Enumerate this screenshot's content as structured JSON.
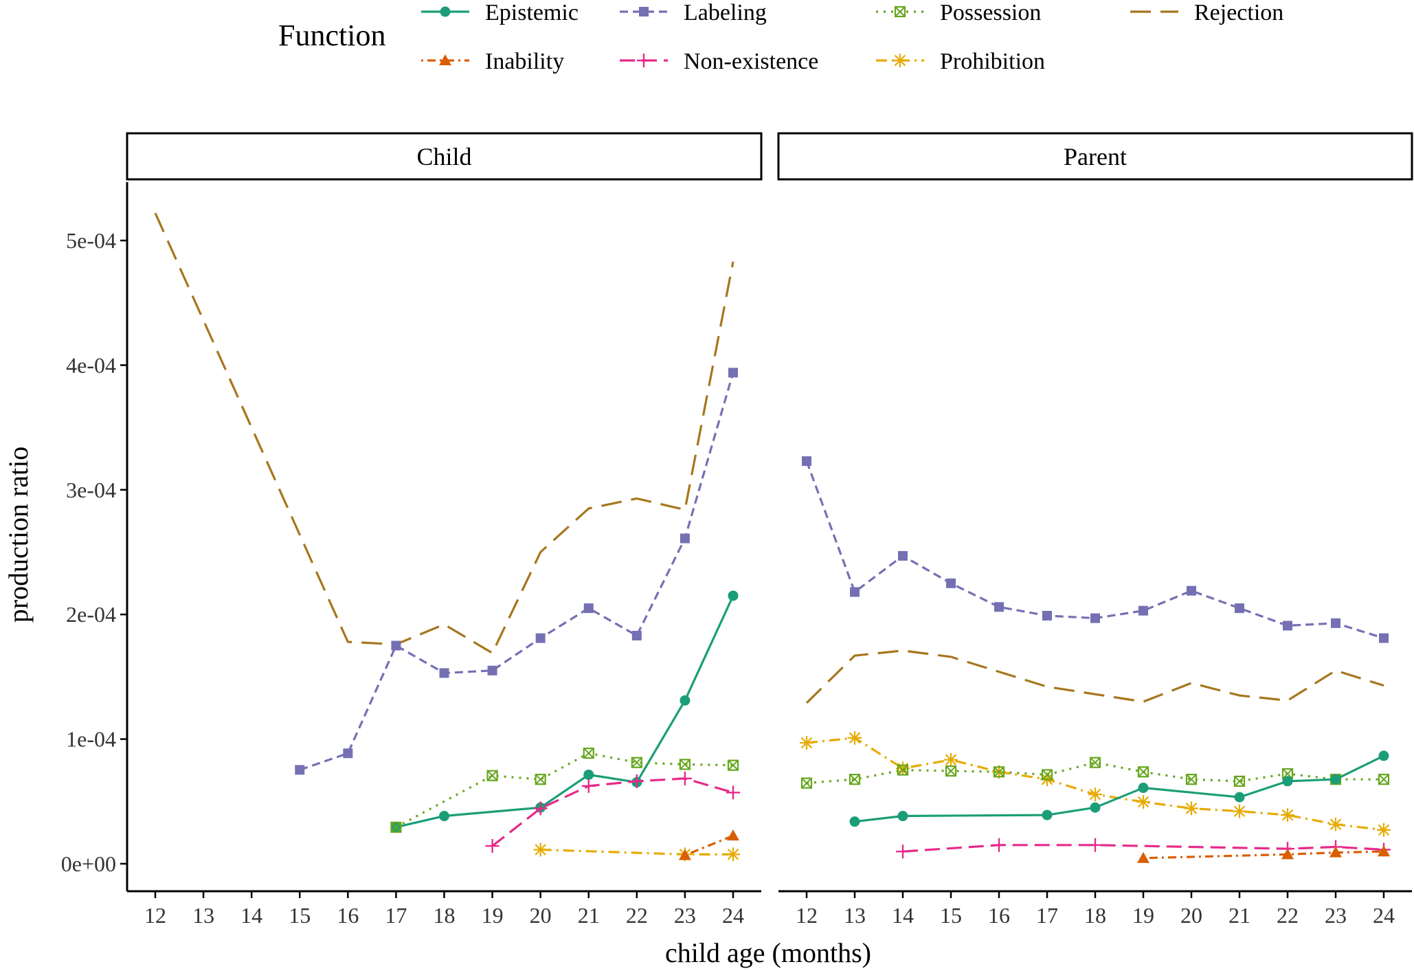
{
  "legend": {
    "title": "Function",
    "entries": [
      {
        "key": "epistemic",
        "label": "Epistemic"
      },
      {
        "key": "labeling",
        "label": "Labeling"
      },
      {
        "key": "possession",
        "label": "Possession"
      },
      {
        "key": "rejection",
        "label": "Rejection"
      },
      {
        "key": "inability",
        "label": "Inability"
      },
      {
        "key": "nonexistence",
        "label": "Non-existence"
      },
      {
        "key": "prohibition",
        "label": "Prohibition"
      }
    ]
  },
  "chart_data": {
    "type": "line",
    "xlabel": "child age (months)",
    "ylabel": "production ratio",
    "xlim": [
      12,
      24
    ],
    "ylim": [
      0,
      0.0005
    ],
    "x_ticks": [
      12,
      13,
      14,
      15,
      16,
      17,
      18,
      19,
      20,
      21,
      22,
      23,
      24
    ],
    "y_ticks": [
      0,
      0.0001,
      0.0002,
      0.0003,
      0.0004,
      0.0005
    ],
    "y_tick_labels": [
      "0e+00",
      "1e-04",
      "2e-04",
      "3e-04",
      "4e-04",
      "5e-04"
    ],
    "legend_position": "top",
    "grid": false,
    "styles": {
      "epistemic": {
        "color": "#1b9e77",
        "marker": "circle",
        "dash": "solid"
      },
      "labeling": {
        "color": "#7570b3",
        "marker": "square",
        "dash": "dashed-short"
      },
      "possession": {
        "color": "#66a61e",
        "marker": "boxx",
        "dash": "dotted"
      },
      "rejection": {
        "color": "#a6761d",
        "marker": "none",
        "dash": "dashed-long"
      },
      "inability": {
        "color": "#d95f02",
        "marker": "triangle",
        "dash": "dotdash"
      },
      "nonexistence": {
        "color": "#e7298a",
        "marker": "plus",
        "dash": "longdash"
      },
      "prohibition": {
        "color": "#e6ab02",
        "marker": "asterisk",
        "dash": "dashdot"
      }
    },
    "panels": [
      {
        "title": "Child",
        "series": [
          {
            "key": "rejection",
            "x": [
              12,
              16,
              17,
              18,
              19,
              20,
              21,
              22,
              23,
              24
            ],
            "y": [
              0.000522,
              0.000178,
              0.000176,
              0.000192,
              0.000169,
              0.00025,
              0.000285,
              0.000293,
              0.000284,
              0.000483
            ]
          },
          {
            "key": "labeling",
            "x": [
              15,
              16,
              17,
              18,
              19,
              20,
              21,
              22,
              23,
              24
            ],
            "y": [
              7.53e-05,
              8.86e-05,
              0.000175,
              0.000153,
              0.000155,
              0.000181,
              0.000205,
              0.000183,
              0.000261,
              0.000394
            ]
          },
          {
            "key": "epistemic",
            "x": [
              17,
              18,
              20,
              21,
              22,
              23,
              24
            ],
            "y": [
              2.93e-05,
              3.83e-05,
              4.51e-05,
              7.14e-05,
              6.54e-05,
              0.000131,
              0.000215
            ]
          },
          {
            "key": "possession",
            "x": [
              17,
              19,
              20,
              21,
              22,
              23,
              24
            ],
            "y": [
              2.93e-05,
              7.07e-05,
              6.77e-05,
              8.87e-05,
              8.12e-05,
              7.97e-05,
              7.9e-05
            ]
          },
          {
            "key": "nonexistence",
            "x": [
              19,
              20,
              21,
              22,
              23,
              24
            ],
            "y": [
              1.43e-05,
              4.44e-05,
              6.24e-05,
              6.62e-05,
              6.84e-05,
              5.71e-05
            ]
          },
          {
            "key": "prohibition",
            "x": [
              20,
              23,
              24
            ],
            "y": [
              1.13e-05,
              7.5e-06,
              7.5e-06
            ]
          },
          {
            "key": "inability",
            "x": [
              23,
              24
            ],
            "y": [
              6.8e-06,
              2.25e-05
            ]
          }
        ]
      },
      {
        "title": "Parent",
        "series": [
          {
            "key": "labeling",
            "x": [
              12,
              13,
              14,
              15,
              16,
              17,
              18,
              19,
              20,
              21,
              22,
              23,
              24
            ],
            "y": [
              0.000323,
              0.000218,
              0.000247,
              0.000225,
              0.000206,
              0.000199,
              0.000197,
              0.000203,
              0.000219,
              0.000205,
              0.000191,
              0.000193,
              0.000181
            ]
          },
          {
            "key": "rejection",
            "x": [
              12,
              13,
              14,
              15,
              16,
              17,
              18,
              19,
              20,
              21,
              22,
              23,
              24
            ],
            "y": [
              0.000129,
              0.000167,
              0.000171,
              0.000166,
              0.000154,
              0.000142,
              0.000136,
              0.00013,
              0.000145,
              0.000135,
              0.000131,
              0.000155,
              0.000143
            ]
          },
          {
            "key": "prohibition",
            "x": [
              12,
              13,
              14,
              15,
              16,
              17,
              18,
              19,
              20,
              21,
              22,
              23,
              24
            ],
            "y": [
              9.7e-05,
              0.000101,
              7.65e-05,
              8.34e-05,
              7.37e-05,
              6.77e-05,
              5.56e-05,
              4.96e-05,
              4.44e-05,
              4.21e-05,
              3.91e-05,
              3.16e-05,
              2.71e-05
            ]
          },
          {
            "key": "possession",
            "x": [
              12,
              13,
              14,
              15,
              16,
              17,
              18,
              19,
              20,
              21,
              22,
              23,
              24
            ],
            "y": [
              6.47e-05,
              6.77e-05,
              7.52e-05,
              7.44e-05,
              7.37e-05,
              7.14e-05,
              8.12e-05,
              7.37e-05,
              6.77e-05,
              6.62e-05,
              7.22e-05,
              6.77e-05,
              6.77e-05
            ]
          },
          {
            "key": "epistemic",
            "x": [
              13,
              14,
              17,
              18,
              19,
              21,
              22,
              23,
              24
            ],
            "y": [
              3.38e-05,
              3.83e-05,
              3.91e-05,
              4.51e-05,
              6.09e-05,
              5.34e-05,
              6.62e-05,
              6.77e-05,
              8.66e-05
            ]
          },
          {
            "key": "nonexistence",
            "x": [
              14,
              16,
              18,
              22,
              23,
              24
            ],
            "y": [
              9.8e-06,
              1.5e-05,
              1.5e-05,
              1.2e-05,
              1.35e-05,
              1.13e-05
            ]
          },
          {
            "key": "inability",
            "x": [
              19,
              22,
              23,
              24
            ],
            "y": [
              4.5e-06,
              7.5e-06,
              9e-06,
              9.8e-06
            ]
          }
        ]
      }
    ]
  }
}
